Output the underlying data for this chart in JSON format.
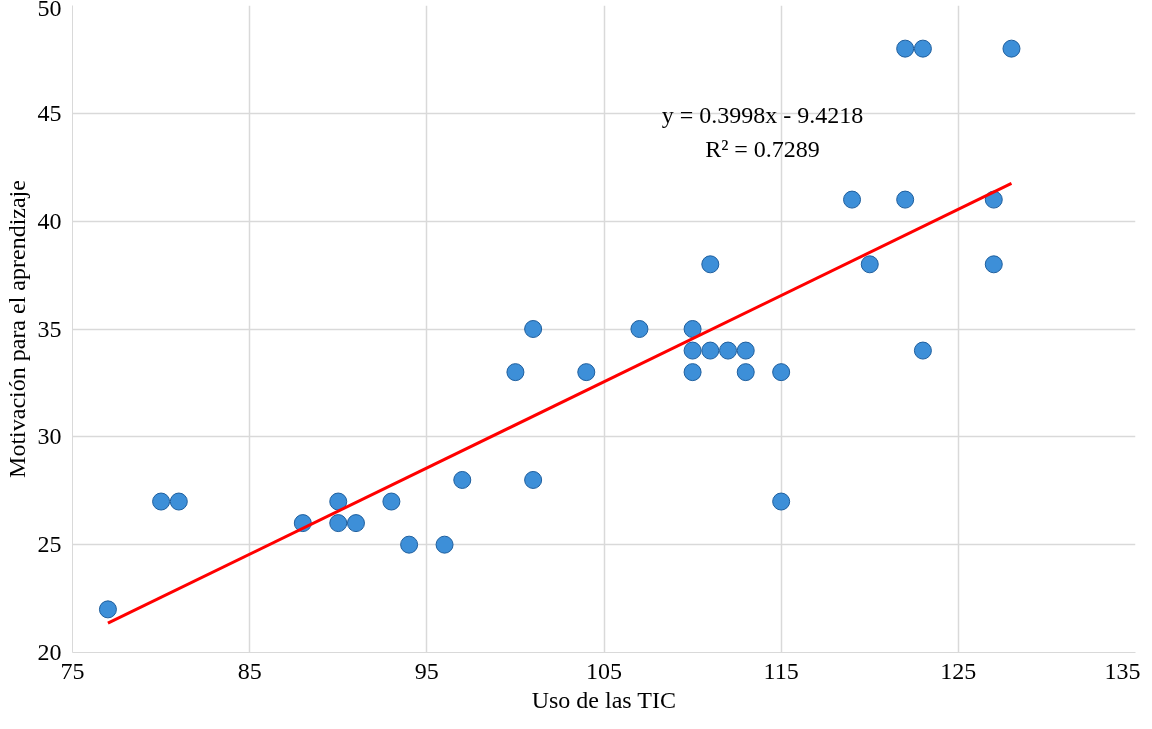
{
  "chart_data": {
    "type": "scatter",
    "xlabel": "Uso de las TIC",
    "ylabel": "Motivación para el aprendizaje",
    "annotations": [
      "y = 0.3998x - 9.4218",
      "R² = 0.7289"
    ],
    "xlim": [
      75,
      135
    ],
    "xticks": [
      75,
      85,
      95,
      105,
      115,
      125,
      135
    ],
    "ylim": [
      20,
      50
    ],
    "yticks": [
      20,
      25,
      30,
      35,
      40,
      45,
      50
    ],
    "grid": true,
    "marker": "circle",
    "series": [
      {
        "color": "#3d8fd8",
        "x": [
          77,
          80,
          81,
          88,
          90,
          90,
          91,
          93,
          94,
          96,
          97,
          100,
          101,
          101,
          104,
          107,
          110,
          110,
          110,
          111,
          111,
          112,
          113,
          113,
          115,
          115,
          119,
          120,
          122,
          122,
          123,
          123,
          127,
          127,
          128
        ],
        "values": [
          22,
          27,
          27,
          26,
          27,
          26,
          26,
          27,
          25,
          25,
          28,
          33,
          35,
          28,
          33,
          35,
          35,
          34,
          33,
          38,
          34,
          34,
          34,
          33,
          33,
          27,
          41,
          38,
          48,
          41,
          48,
          34,
          41,
          38,
          48
        ]
      },
      {
        "type": "line",
        "marker": "none",
        "color": "#ff0000",
        "line_style": "solid",
        "x": [
          77,
          128
        ],
        "values": [
          21.36,
          41.75
        ]
      }
    ]
  }
}
